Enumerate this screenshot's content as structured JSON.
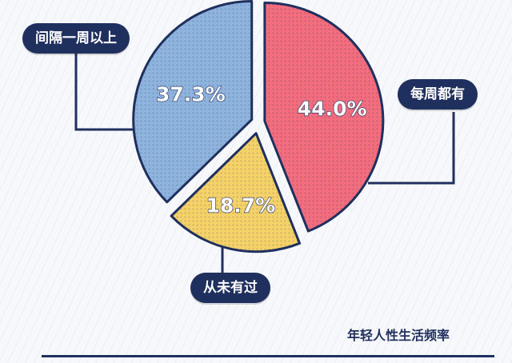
{
  "chart_data": {
    "type": "pie",
    "title": "年轻人性生活频率",
    "slices": [
      {
        "label": "每周都有",
        "value": 44.0,
        "value_label": "44.0%",
        "color": "#f26d7d"
      },
      {
        "label": "从未有过",
        "value": 18.7,
        "value_label": "18.7%",
        "color": "#f5d268"
      },
      {
        "label": "间隔一周以上",
        "value": 37.3,
        "value_label": "37.3%",
        "color": "#8eb3dc"
      }
    ],
    "outline_color": "#1f2f5e"
  }
}
